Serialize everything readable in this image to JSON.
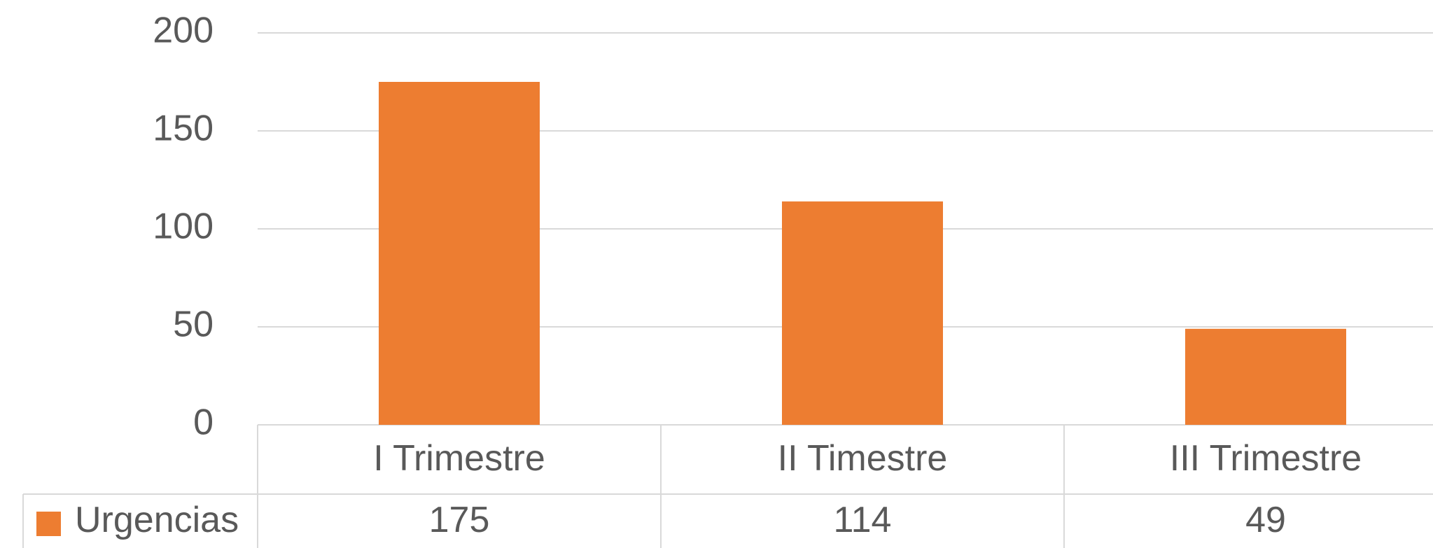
{
  "chart_data": {
    "type": "bar",
    "categories": [
      "I Trimestre",
      "II Timestre",
      "III Trimestre"
    ],
    "series": [
      {
        "name": "Urgencias",
        "color": "#ed7d31",
        "values": [
          175,
          114,
          49
        ]
      }
    ],
    "ylim": [
      0,
      200
    ],
    "yticks": [
      0,
      50,
      100,
      150,
      200
    ],
    "grid": true
  }
}
